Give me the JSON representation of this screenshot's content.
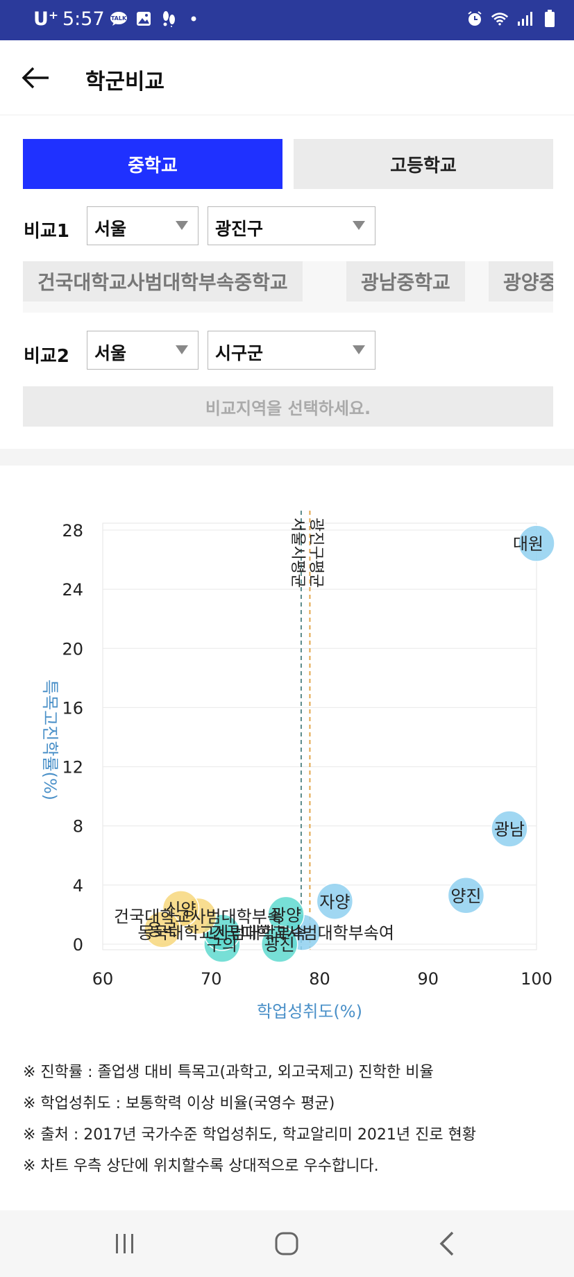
{
  "status_bar": {
    "carrier": "U⁺",
    "time": "5:57",
    "left_icons": [
      "talk-icon",
      "gallery-icon",
      "footsteps-icon",
      "dot-icon"
    ],
    "talk_label": "TALK",
    "right_icons": [
      "alarm-icon",
      "wifi-icon",
      "signal-icon",
      "battery-icon"
    ]
  },
  "header": {
    "title": "학군비교"
  },
  "tabs": {
    "middle": "중학교",
    "high": "고등학교"
  },
  "compare1": {
    "label": "비교1",
    "city": "서울",
    "district": "광진구"
  },
  "schools": [
    "건국대학교사범대학부속중학교",
    "광남중학교",
    "광양중학교"
  ],
  "compare2": {
    "label": "비교2",
    "city": "서울",
    "district": "시구군"
  },
  "placeholder": "비교지역을 선택하세요.",
  "chart_data": {
    "type": "scatter",
    "xlabel": "학업성취도(%)",
    "ylabel": "특목고진학률(%)",
    "xlim": [
      60,
      100
    ],
    "ylim": [
      0,
      28
    ],
    "xticks": [
      60,
      70,
      80,
      90,
      100
    ],
    "yticks": [
      0,
      4,
      8,
      12,
      16,
      20,
      24,
      28
    ],
    "ref_lines": [
      {
        "label": "광진구평균",
        "x": 79.1,
        "color": "#e3a64a"
      },
      {
        "label": "서울시평균",
        "x": 78.3,
        "color": "#5a8a8a"
      }
    ],
    "points": [
      {
        "label": "대원",
        "x": 100,
        "y": 27.1,
        "color": "#8fd0f0"
      },
      {
        "label": "광남",
        "x": 97.5,
        "y": 7.8,
        "color": "#8fd0f0"
      },
      {
        "label": "양진",
        "x": 93.5,
        "y": 3.3,
        "color": "#8fd0f0"
      },
      {
        "label": "자양",
        "x": 81.4,
        "y": 2.9,
        "color": "#8fd0f0"
      },
      {
        "label": "건국대학교사범대학부속여",
        "x": 78.4,
        "y": 0.8,
        "color": "#8fd0f0"
      },
      {
        "label": "광양",
        "x": 76.9,
        "y": 2.0,
        "color": "#5fd9cf"
      },
      {
        "label": "광진",
        "x": 76.3,
        "y": 0.0,
        "color": "#5fd9cf"
      },
      {
        "label": "구의",
        "x": 71.0,
        "y": 0.0,
        "color": "#5fd9cf"
      },
      {
        "label": "동국대학교사범대학부속",
        "x": 71.0,
        "y": 0.8,
        "color": "#5fd9cf"
      },
      {
        "label": "건국대학교사범대학부속",
        "x": 68.8,
        "y": 1.9,
        "color": "#f7d77c"
      },
      {
        "label": "신양",
        "x": 67.2,
        "y": 2.4,
        "color": "#f7d77c"
      },
      {
        "label": "용곡",
        "x": 65.5,
        "y": 1.0,
        "color": "#f7d77c"
      }
    ]
  },
  "notes": [
    "※ 진학률 : 졸업생 대비 특목고(과학고, 외고국제고) 진학한 비율",
    "※ 학업성취도 : 보통학력 이상 비율(국영수 평균)",
    "※ 출처 : 2017년 국가수준 학업성취도, 학교알리미 2021년 진로 현황",
    "※ 차트 우측 상단에 위치할수록 상대적으로 우수합니다."
  ],
  "nav": [
    "recent-apps-icon",
    "home-icon",
    "back-nav-icon"
  ]
}
